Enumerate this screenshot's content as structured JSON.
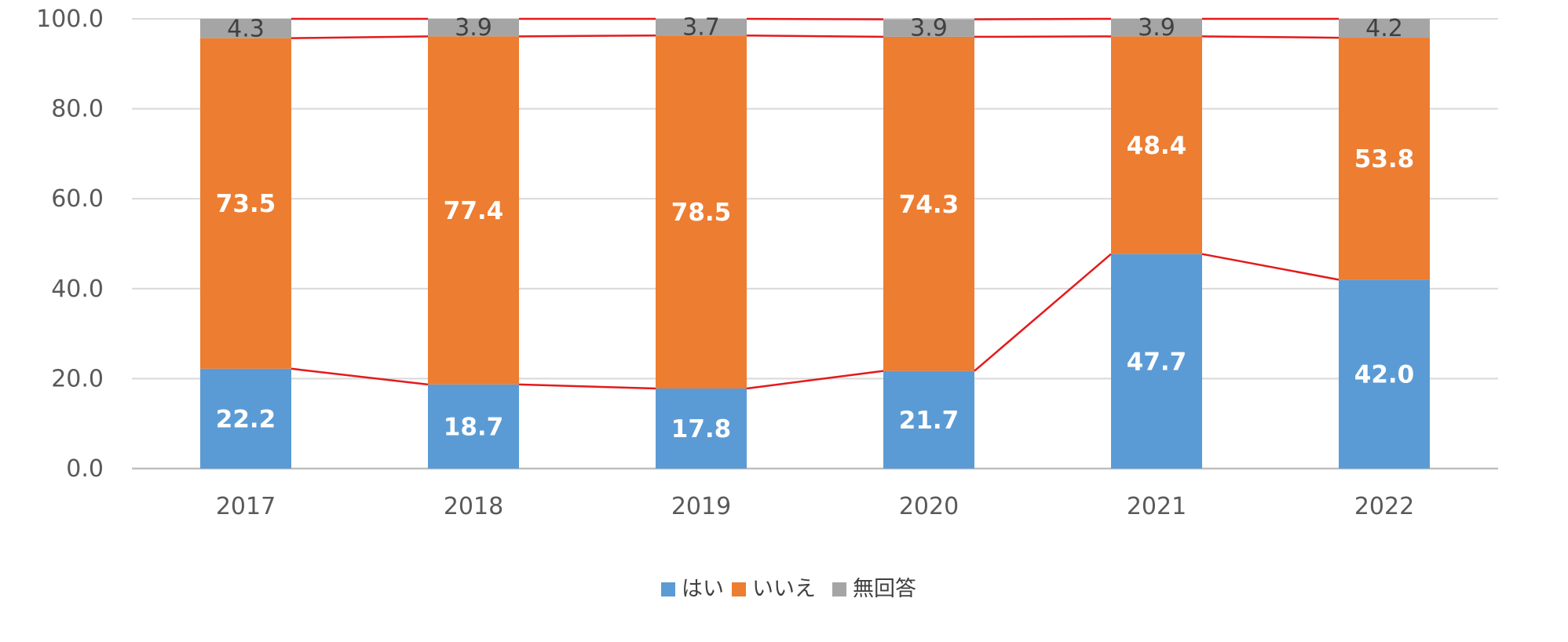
{
  "chart_data": {
    "type": "bar",
    "stacked": true,
    "categories": [
      "2017",
      "2018",
      "2019",
      "2020",
      "2021",
      "2022"
    ],
    "series": [
      {
        "name": "はい",
        "color": "#5b9bd5",
        "values": [
          22.2,
          18.7,
          17.8,
          21.7,
          47.7,
          42.0
        ]
      },
      {
        "name": "いいえ",
        "color": "#ed7d31",
        "values": [
          73.5,
          77.4,
          78.5,
          74.3,
          48.4,
          53.8
        ]
      },
      {
        "name": "無回答",
        "color": "#a5a5a5",
        "values": [
          4.3,
          3.9,
          3.7,
          3.9,
          3.9,
          4.2
        ]
      }
    ],
    "yticks": [
      "0.0",
      "20.0",
      "40.0",
      "60.0",
      "80.0",
      "100.0"
    ],
    "ylim": [
      0,
      100
    ],
    "connector_color": "#e31a1c",
    "grid": true,
    "legend_position": "bottom"
  }
}
